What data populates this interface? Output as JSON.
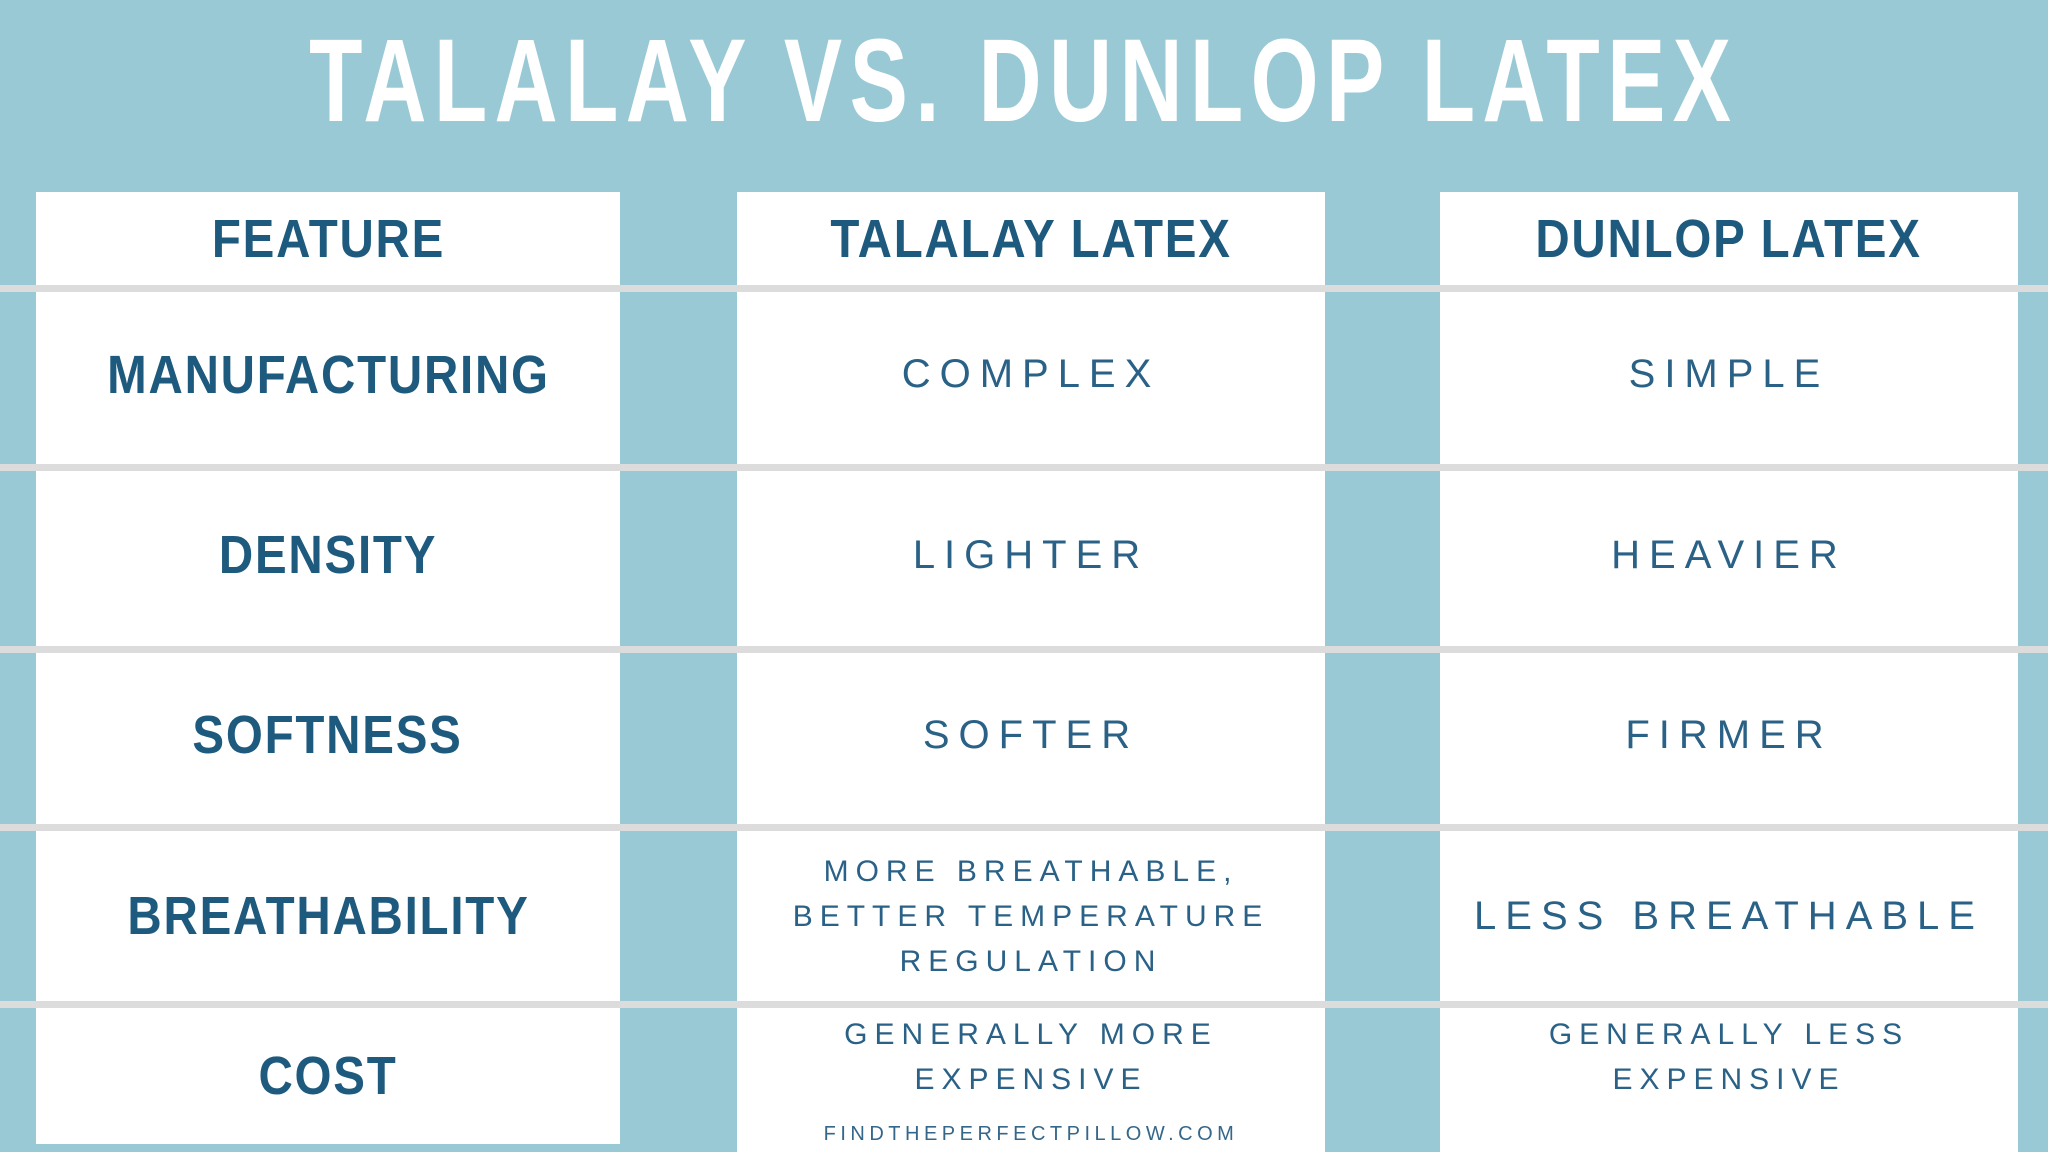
{
  "title": "TALALAY VS. DUNLOP LATEX",
  "table": {
    "columns": [
      {
        "label": "FEATURE"
      },
      {
        "label": "TALALAY LATEX"
      },
      {
        "label": "DUNLOP LATEX"
      }
    ],
    "rows": [
      {
        "feature": "MANUFACTURING",
        "talalay": "COMPLEX",
        "dunlop": "SIMPLE"
      },
      {
        "feature": "DENSITY",
        "talalay": "LIGHTER",
        "dunlop": "HEAVIER"
      },
      {
        "feature": "SOFTNESS",
        "talalay": "SOFTER",
        "dunlop": "FIRMER"
      },
      {
        "feature": "BREATHABILITY",
        "talalay": "MORE BREATHABLE, BETTER TEMPERATURE REGULATION",
        "dunlop": "LESS BREATHABLE"
      },
      {
        "feature": "COST",
        "talalay": "GENERALLY MORE EXPENSIVE",
        "dunlop": "GENERALLY LESS EXPENSIVE"
      }
    ]
  },
  "footer": {
    "website": "FINDTHEPERFECTPILLOW.COM"
  },
  "colors": {
    "background_blue": "#9ac9d6",
    "panel_white": "#ffffff",
    "divider_gray": "#dcdcdc",
    "heading_navy": "#1d5a7e",
    "value_blue": "#2a6186",
    "title_white": "#ffffff"
  },
  "chart_data": {
    "type": "table",
    "title": "TALALAY VS. DUNLOP LATEX",
    "columns": [
      "FEATURE",
      "TALALAY LATEX",
      "DUNLOP LATEX"
    ],
    "categories": [
      "MANUFACTURING",
      "DENSITY",
      "SOFTNESS",
      "BREATHABILITY",
      "COST"
    ],
    "series": [
      {
        "name": "TALALAY LATEX",
        "values": [
          "COMPLEX",
          "LIGHTER",
          "SOFTER",
          "MORE BREATHABLE, BETTER TEMPERATURE REGULATION",
          "GENERALLY MORE EXPENSIVE"
        ]
      },
      {
        "name": "DUNLOP LATEX",
        "values": [
          "SIMPLE",
          "HEAVIER",
          "FIRMER",
          "LESS BREATHABLE",
          "GENERALLY LESS EXPENSIVE"
        ]
      }
    ],
    "annotations": [
      "FINDTHEPERFECTPILLOW.COM"
    ]
  }
}
